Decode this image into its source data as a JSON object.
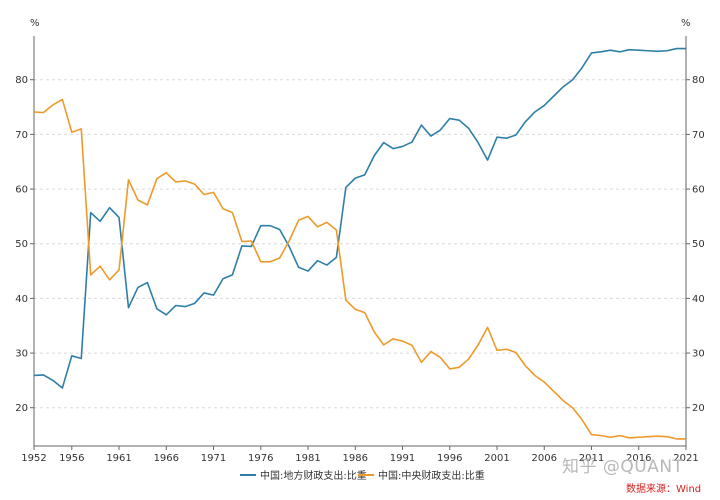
{
  "chart_data": {
    "type": "line",
    "title": "",
    "unit_left": "%",
    "unit_right": "%",
    "ylim": [
      13,
      88
    ],
    "xlim": [
      1952,
      2021
    ],
    "y_ticks": [
      20,
      30,
      40,
      50,
      60,
      70,
      80
    ],
    "x_ticks": [
      1952,
      1956,
      1961,
      1966,
      1971,
      1976,
      1981,
      1986,
      1991,
      1996,
      2001,
      2006,
      2011,
      2016,
      2021
    ],
    "grid": "horizontal-dashed",
    "legend_position": "bottom",
    "colors": {
      "local": "#2e7ea8",
      "central": "#ee9a2b"
    },
    "x": [
      1952,
      1953,
      1954,
      1955,
      1956,
      1957,
      1958,
      1959,
      1960,
      1961,
      1962,
      1963,
      1964,
      1965,
      1966,
      1967,
      1968,
      1969,
      1970,
      1971,
      1972,
      1973,
      1974,
      1975,
      1976,
      1977,
      1978,
      1979,
      1980,
      1981,
      1982,
      1983,
      1984,
      1985,
      1986,
      1987,
      1988,
      1989,
      1990,
      1991,
      1992,
      1993,
      1994,
      1995,
      1996,
      1997,
      1998,
      1999,
      2000,
      2001,
      2002,
      2003,
      2004,
      2005,
      2006,
      2007,
      2008,
      2009,
      2010,
      2011,
      2012,
      2013,
      2014,
      2015,
      2016,
      2017,
      2018,
      2019,
      2020,
      2021
    ],
    "series": [
      {
        "name": "中国:地方财政支出:比重",
        "values": [
          25.9,
          26,
          25,
          23.6,
          29.5,
          29,
          55.7,
          54.1,
          56.6,
          54.8,
          38.3,
          42,
          42.9,
          38.1,
          37,
          38.7,
          38.5,
          39.1,
          41,
          40.6,
          43.6,
          44.3,
          49.6,
          49.5,
          53.3,
          53.3,
          52.6,
          49.5,
          45.7,
          45,
          46.9,
          46.1,
          47.5,
          60.3,
          62,
          62.6,
          66.1,
          68.5,
          67.4,
          67.8,
          68.6,
          71.7,
          69.7,
          70.8,
          72.9,
          72.6,
          71.1,
          68.5,
          65.3,
          69.5,
          69.3,
          69.9,
          72.3,
          74.1,
          75.3,
          77,
          78.7,
          80,
          82.2,
          84.9,
          85.1,
          85.4,
          85.1,
          85.5,
          85.4,
          85.3,
          85.2,
          85.3,
          85.7,
          85.7
        ]
      },
      {
        "name": "中国:中央财政支出:比重",
        "values": [
          74.1,
          74,
          75.4,
          76.4,
          70.4,
          71,
          44.3,
          45.9,
          43.4,
          45.2,
          61.7,
          58,
          57.1,
          61.9,
          63,
          61.3,
          61.5,
          60.9,
          59,
          59.4,
          56.4,
          55.7,
          50.4,
          50.5,
          46.7,
          46.7,
          47.4,
          50.5,
          54.3,
          55,
          53.1,
          53.9,
          52.5,
          39.7,
          38,
          37.4,
          33.9,
          31.5,
          32.6,
          32.2,
          31.4,
          28.3,
          30.3,
          29.2,
          27.1,
          27.4,
          28.9,
          31.5,
          34.7,
          30.5,
          30.7,
          30.1,
          27.7,
          25.9,
          24.7,
          23,
          21.3,
          20,
          17.8,
          15.1,
          14.9,
          14.6,
          14.9,
          14.5,
          14.6,
          14.7,
          14.8,
          14.7,
          14.3,
          14.3
        ]
      }
    ]
  },
  "legend": {
    "local_label": "中国:地方财政支出:比重",
    "central_label": "中国:中央财政支出:比重"
  },
  "watermark": "知乎 @QUANT",
  "source": "数据来源：Wind"
}
